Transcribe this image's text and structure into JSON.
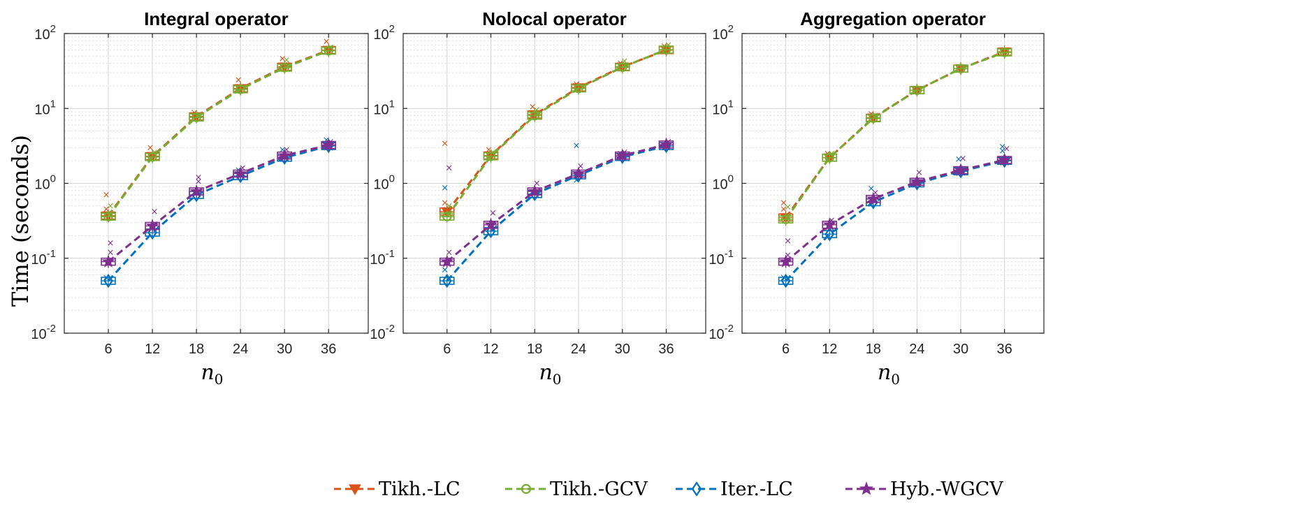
{
  "legend": [
    {
      "label": "Tikh.-LC",
      "color": "#D95319",
      "marker": "triangle-down"
    },
    {
      "label": "Tikh.-GCV",
      "color": "#77AC30",
      "marker": "circle"
    },
    {
      "label": "Iter.-LC",
      "color": "#0072BD",
      "marker": "diamond"
    },
    {
      "label": "Hyb.-WGCV",
      "color": "#7E2F8E",
      "marker": "star"
    }
  ],
  "chart_data": [
    {
      "type": "line",
      "title": "Integral operator",
      "xlabel": "n",
      "xlabel_sub": "0",
      "ylabel": "Time (seconds)",
      "yscale": "log",
      "ylim": [
        0.01,
        100
      ],
      "yticks": [
        {
          "base": "10",
          "exp": "-2"
        },
        {
          "base": "10",
          "exp": "-1"
        },
        {
          "base": "10",
          "exp": "0"
        },
        {
          "base": "10",
          "exp": "1"
        },
        {
          "base": "10",
          "exp": "2"
        }
      ],
      "categories": [
        "6",
        "12",
        "18",
        "24",
        "30",
        "36"
      ],
      "series": [
        {
          "name": "Tikh.-LC",
          "values": [
            0.37,
            2.3,
            7.8,
            18.5,
            36,
            60
          ],
          "outliers": [
            [
              0,
              0.7
            ],
            [
              0,
              0.45
            ],
            [
              1,
              3.0
            ],
            [
              2,
              8.7
            ],
            [
              3,
              24
            ],
            [
              4,
              46
            ],
            [
              5,
              78
            ]
          ]
        },
        {
          "name": "Tikh.-GCV",
          "values": [
            0.36,
            2.25,
            7.6,
            18,
            35,
            59
          ],
          "outliers": [
            [
              0,
              0.5
            ],
            [
              1,
              2.6
            ],
            [
              2,
              8.3
            ],
            [
              4,
              44
            ],
            [
              5,
              66
            ]
          ]
        },
        {
          "name": "Iter.-LC",
          "values": [
            0.05,
            0.22,
            0.7,
            1.25,
            2.2,
            3.15
          ],
          "outliers": [
            [
              0,
              0.055
            ],
            [
              3,
              1.5
            ],
            [
              4,
              2.8
            ],
            [
              5,
              3.8
            ]
          ]
        },
        {
          "name": "Hyb.-WGCV",
          "values": [
            0.09,
            0.27,
            0.78,
            1.35,
            2.35,
            3.25
          ],
          "outliers": [
            [
              0,
              0.16
            ],
            [
              0,
              0.12
            ],
            [
              1,
              0.42
            ],
            [
              2,
              1.2
            ],
            [
              2,
              1.05
            ],
            [
              3,
              1.6
            ],
            [
              4,
              2.8
            ],
            [
              5,
              3.6
            ]
          ]
        }
      ]
    },
    {
      "type": "line",
      "title": "Nolocal operator",
      "xlabel": "n",
      "xlabel_sub": "0",
      "yscale": "log",
      "ylim": [
        0.01,
        100
      ],
      "yticks": [
        {
          "base": "10",
          "exp": "-2"
        },
        {
          "base": "10",
          "exp": "-1"
        },
        {
          "base": "10",
          "exp": "0"
        },
        {
          "base": "10",
          "exp": "1"
        },
        {
          "base": "10",
          "exp": "2"
        }
      ],
      "categories": [
        "6",
        "12",
        "18",
        "24",
        "30",
        "36"
      ],
      "series": [
        {
          "name": "Tikh.-LC",
          "values": [
            0.42,
            2.35,
            8.3,
            19,
            36,
            60
          ],
          "outliers": [
            [
              0,
              3.4
            ],
            [
              0,
              0.55
            ],
            [
              1,
              2.8
            ],
            [
              2,
              10.5
            ],
            [
              3,
              21
            ],
            [
              4,
              40
            ],
            [
              5,
              68
            ]
          ]
        },
        {
          "name": "Tikh.-GCV",
          "values": [
            0.36,
            2.3,
            8,
            18.5,
            35.5,
            61
          ],
          "outliers": [
            [
              0,
              0.5
            ],
            [
              1,
              2.6
            ],
            [
              2,
              9.5
            ],
            [
              4,
              43
            ],
            [
              5,
              70
            ]
          ]
        },
        {
          "name": "Iter.-LC",
          "values": [
            0.05,
            0.23,
            0.72,
            1.28,
            2.25,
            3.15
          ],
          "outliers": [
            [
              0,
              0.87
            ],
            [
              0,
              0.07
            ],
            [
              3,
              3.2
            ],
            [
              3,
              1.1
            ],
            [
              4,
              2.5
            ]
          ]
        },
        {
          "name": "Hyb.-WGCV",
          "values": [
            0.09,
            0.28,
            0.78,
            1.35,
            2.35,
            3.3
          ],
          "outliers": [
            [
              0,
              1.6
            ],
            [
              0,
              0.12
            ],
            [
              1,
              0.4
            ],
            [
              2,
              1.0
            ],
            [
              3,
              1.7
            ],
            [
              4,
              2.6
            ],
            [
              5,
              3.6
            ]
          ]
        }
      ]
    },
    {
      "type": "line",
      "title": "Aggregation operator",
      "xlabel": "n",
      "xlabel_sub": "0",
      "yscale": "log",
      "ylim": [
        0.01,
        100
      ],
      "yticks": [
        {
          "base": "10",
          "exp": "-2"
        },
        {
          "base": "10",
          "exp": "-1"
        },
        {
          "base": "10",
          "exp": "0"
        },
        {
          "base": "10",
          "exp": "1"
        },
        {
          "base": "10",
          "exp": "2"
        }
      ],
      "categories": [
        "6",
        "12",
        "18",
        "24",
        "30",
        "36"
      ],
      "series": [
        {
          "name": "Tikh.-LC",
          "values": [
            0.35,
            2.2,
            7.5,
            17.5,
            34,
            57
          ],
          "outliers": [
            [
              0,
              0.55
            ],
            [
              0,
              0.45
            ],
            [
              1,
              2.5
            ],
            [
              2,
              8.5
            ],
            [
              4,
              36
            ],
            [
              5,
              60
            ]
          ]
        },
        {
          "name": "Tikh.-GCV",
          "values": [
            0.33,
            2.2,
            7.4,
            17.5,
            34,
            56
          ],
          "outliers": [
            [
              0,
              0.48
            ],
            [
              1,
              2.5
            ],
            [
              2,
              8.1
            ]
          ]
        },
        {
          "name": "Iter.-LC",
          "values": [
            0.05,
            0.21,
            0.56,
            1.0,
            1.45,
            2.0
          ],
          "outliers": [
            [
              0,
              0.055
            ],
            [
              2,
              0.85
            ],
            [
              4,
              2.1
            ],
            [
              5,
              3.1
            ],
            [
              5,
              2.7
            ]
          ]
        },
        {
          "name": "Hyb.-WGCV",
          "values": [
            0.09,
            0.28,
            0.62,
            1.05,
            1.5,
            2.05
          ],
          "outliers": [
            [
              0,
              0.17
            ],
            [
              0,
              0.11
            ],
            [
              1,
              0.32
            ],
            [
              2,
              0.75
            ],
            [
              3,
              1.4
            ],
            [
              4,
              2.15
            ],
            [
              5,
              2.9
            ]
          ]
        }
      ]
    }
  ]
}
